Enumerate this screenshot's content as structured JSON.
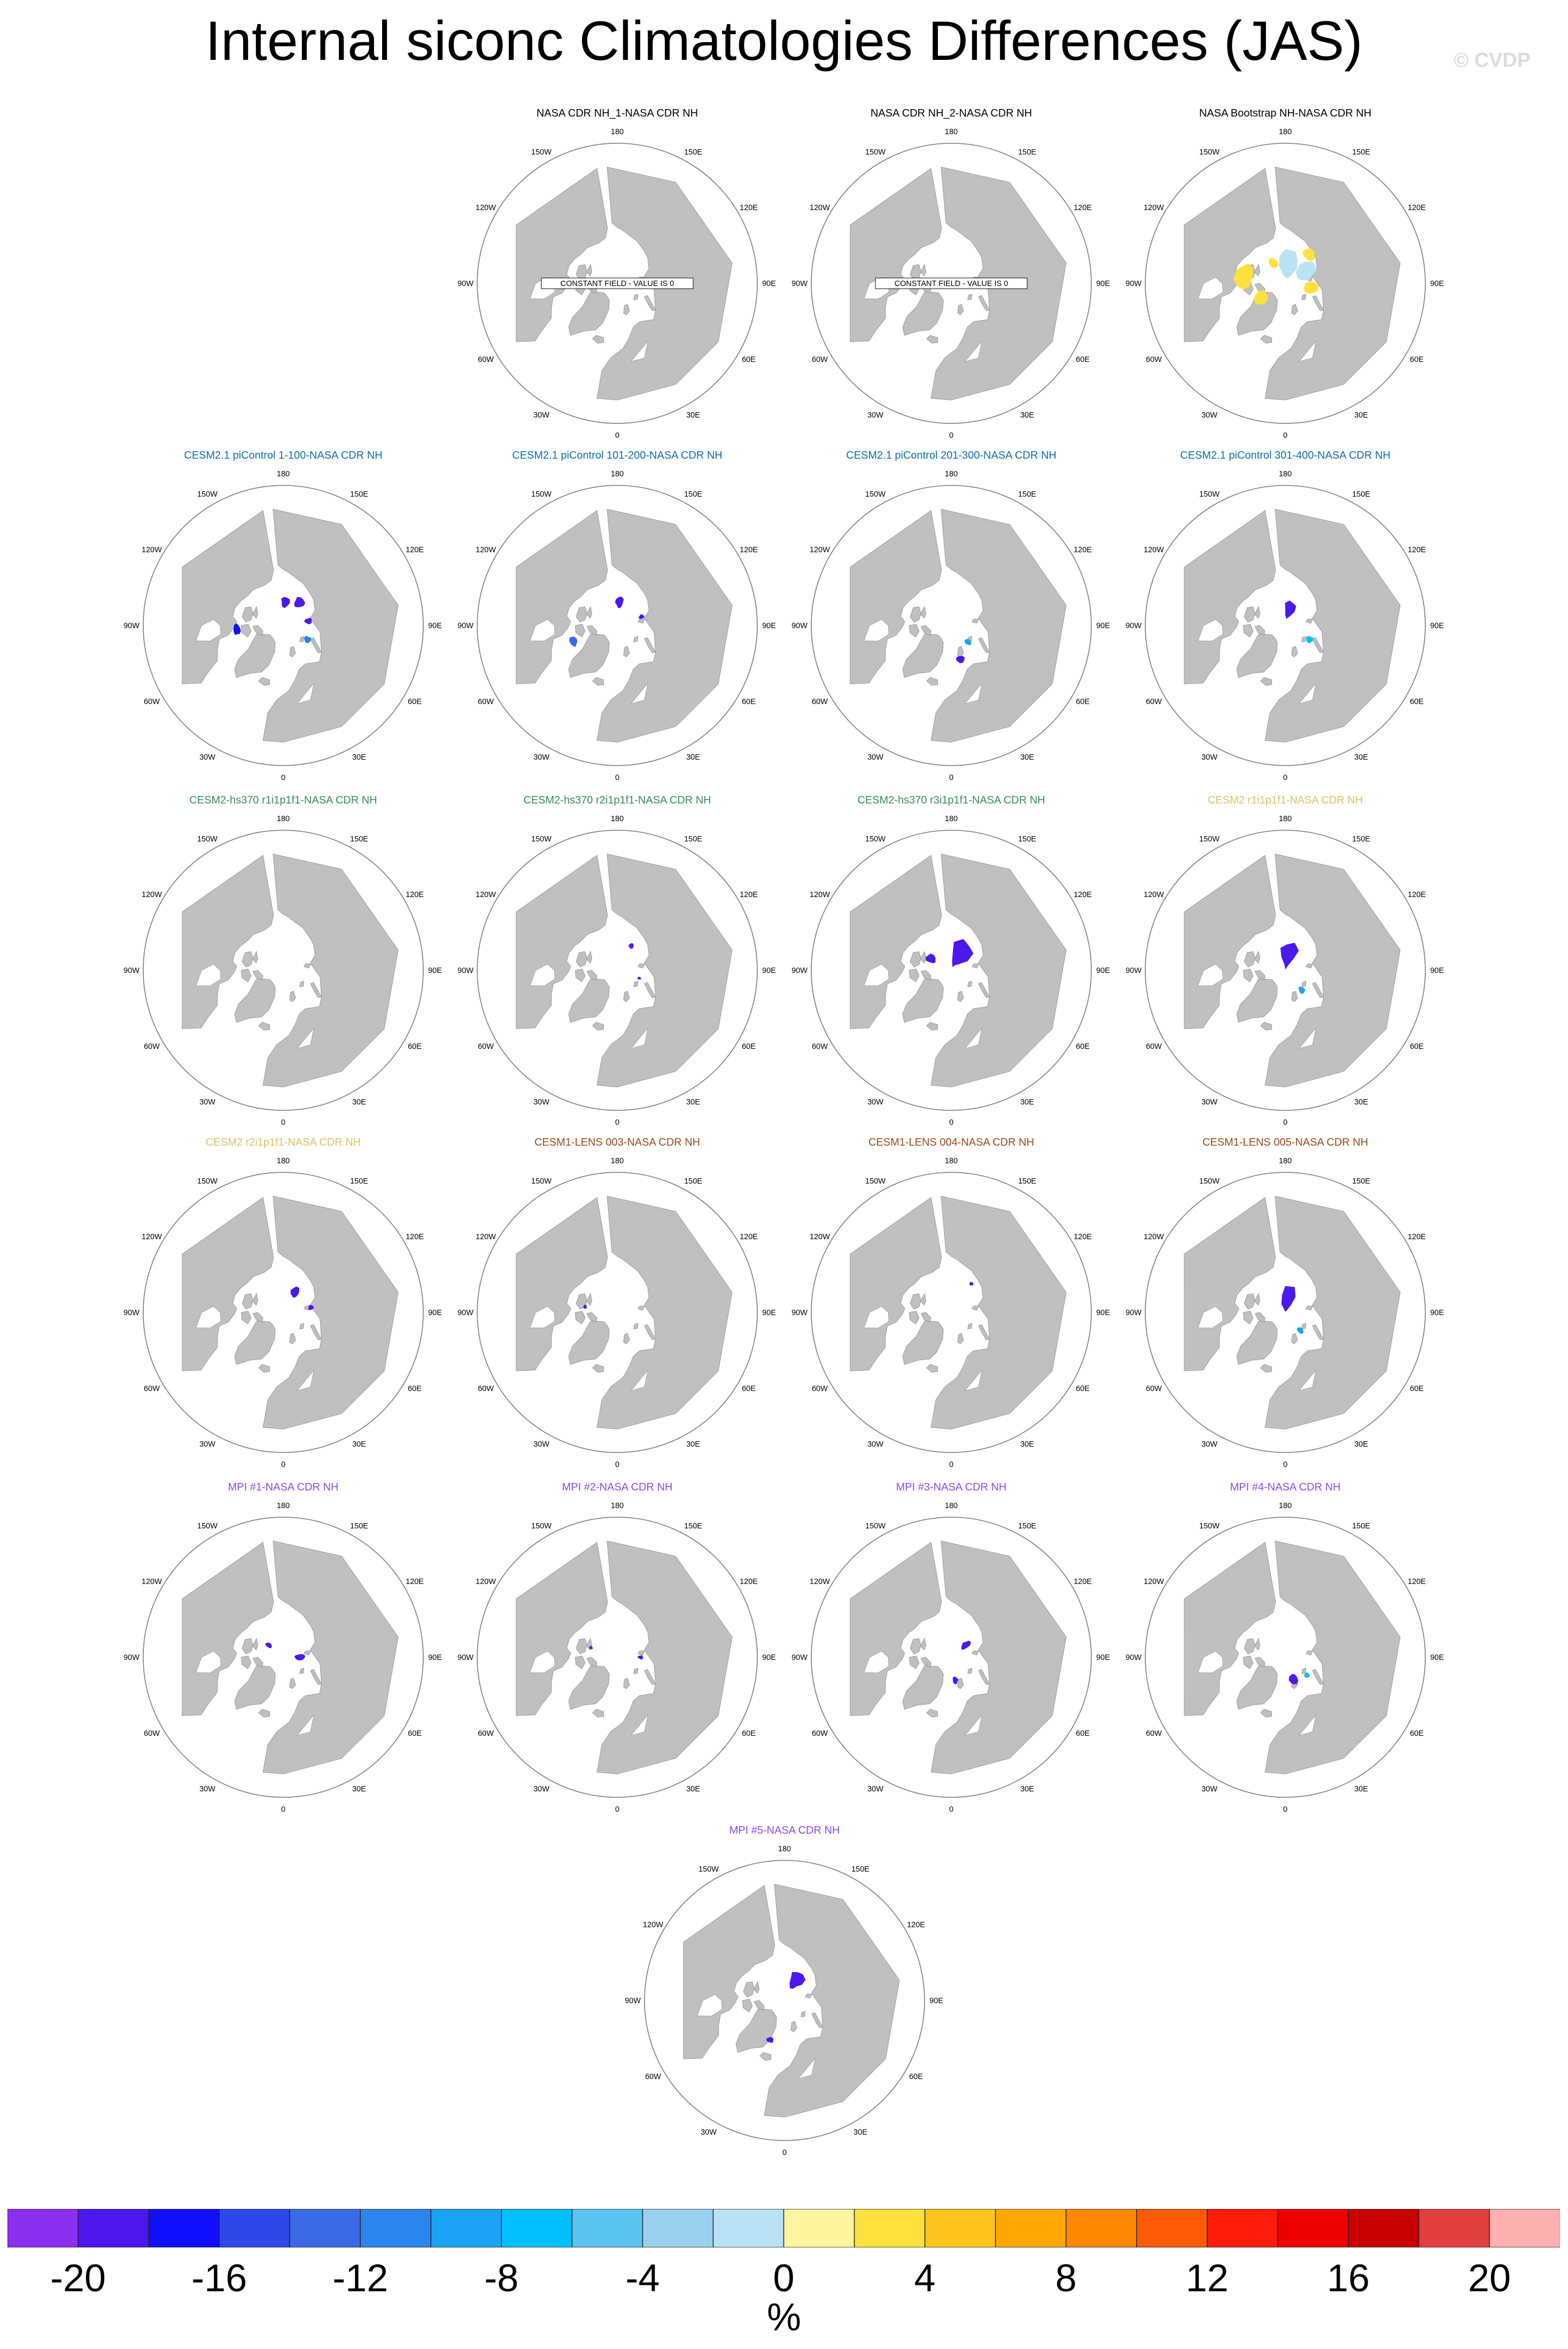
{
  "title": "Internal siconc Climatologies Differences (JAS)",
  "watermark": "© CVDP",
  "chart_data": {
    "type": "heatmap",
    "projection": "north-polar-stereographic",
    "grid": true,
    "colors": {
      "land": "#c0c0c0",
      "ocean": "#ffffff",
      "label_black": "#000000",
      "label_cesm21": "#0f6ea8",
      "label_hs370": "#3b8a5a",
      "label_cesm2": "#d6c46a",
      "label_lens": "#9a4a1a",
      "label_mpi": "#8a4be6"
    },
    "longitude_labels": [
      "180",
      "150E",
      "120E",
      "90E",
      "60E",
      "30E",
      "0",
      "30W",
      "60W",
      "90W",
      "120W",
      "150W"
    ],
    "panels": [
      {
        "title": "NASA CDR NH_1-NASA CDR NH",
        "title_color": "label_black",
        "note": "CONSTANT FIELD - VALUE IS 0",
        "anomalies": []
      },
      {
        "title": "NASA CDR NH_2-NASA CDR NH",
        "title_color": "label_black",
        "note": "CONSTANT FIELD - VALUE IS 0",
        "anomalies": []
      },
      {
        "title": "NASA Bootstrap NH-NASA CDR NH",
        "title_color": "label_black",
        "note": "",
        "anomalies": [
          {
            "value": -2,
            "lon": 170,
            "lat": 82,
            "extent": 8
          },
          {
            "value": -2,
            "lon": 120,
            "lat": 80,
            "extent": 6
          },
          {
            "value": 2,
            "lon": -100,
            "lat": 72,
            "extent": 5
          },
          {
            "value": 2,
            "lon": -60,
            "lat": 78,
            "extent": 4
          },
          {
            "value": 2,
            "lon": 80,
            "lat": 79,
            "extent": 4
          },
          {
            "value": 2,
            "lon": 140,
            "lat": 74,
            "extent": 3
          },
          {
            "value": 2,
            "lon": -150,
            "lat": 80,
            "extent": 3
          }
        ]
      },
      {
        "title": "CESM2.1 piControl 1-100-NASA CDR NH",
        "title_color": "label_cesm21",
        "note": "",
        "anomalies": [
          {
            "value": -20,
            "lon": 145,
            "lat": 78,
            "extent": 3
          },
          {
            "value": -20,
            "lon": 175,
            "lat": 80,
            "extent": 3
          },
          {
            "value": -20,
            "lon": 100,
            "lat": 79,
            "extent": 2
          },
          {
            "value": -12,
            "lon": 60,
            "lat": 78,
            "extent": 2
          },
          {
            "value": -18,
            "lon": -85,
            "lat": 70,
            "extent": 2
          }
        ]
      },
      {
        "title": "CESM2.1 piControl 101-200-NASA CDR NH",
        "title_color": "label_cesm21",
        "note": "",
        "anomalies": [
          {
            "value": -20,
            "lon": 175,
            "lat": 80,
            "extent": 3
          },
          {
            "value": -14,
            "lon": -70,
            "lat": 70,
            "extent": 2
          },
          {
            "value": -20,
            "lon": 110,
            "lat": 79,
            "extent": 1.5
          }
        ]
      },
      {
        "title": "CESM2.1 piControl 201-300-NASA CDR NH",
        "title_color": "label_cesm21",
        "note": "",
        "anomalies": [
          {
            "value": -10,
            "lon": 45,
            "lat": 80,
            "extent": 2
          },
          {
            "value": -20,
            "lon": 15,
            "lat": 75,
            "extent": 2
          }
        ]
      },
      {
        "title": "CESM2.1 piControl 301-400-NASA CDR NH",
        "title_color": "label_cesm21",
        "note": "",
        "anomalies": [
          {
            "value": -20,
            "lon": 165,
            "lat": 83,
            "extent": 5
          },
          {
            "value": -8,
            "lon": 60,
            "lat": 78,
            "extent": 2
          }
        ]
      },
      {
        "title": "CESM2-hs370 r1i1p1f1-NASA CDR NH",
        "title_color": "label_hs370",
        "note": "",
        "anomalies": []
      },
      {
        "title": "CESM2-hs370 r2i1p1f1-NASA CDR NH",
        "title_color": "label_hs370",
        "note": "",
        "anomalies": [
          {
            "value": -20,
            "lon": 150,
            "lat": 78,
            "extent": 1.5
          },
          {
            "value": -20,
            "lon": 70,
            "lat": 80,
            "extent": 1
          }
        ]
      },
      {
        "title": "CESM2-hs370 r3i1p1f1-NASA CDR NH",
        "title_color": "label_hs370",
        "note": "",
        "anomalies": [
          {
            "value": -20,
            "lon": 150,
            "lat": 82,
            "extent": 8
          },
          {
            "value": -20,
            "lon": -120,
            "lat": 80,
            "extent": 3
          }
        ]
      },
      {
        "title": "CESM2 r1i1p1f1-NASA CDR NH",
        "title_color": "label_cesm2",
        "note": "",
        "anomalies": [
          {
            "value": -20,
            "lon": 170,
            "lat": 84,
            "extent": 8
          },
          {
            "value": -10,
            "lon": 40,
            "lat": 79,
            "extent": 2
          }
        ]
      },
      {
        "title": "CESM2 r2i1p1f1-NASA CDR NH",
        "title_color": "label_cesm2",
        "note": "",
        "anomalies": [
          {
            "value": -20,
            "lon": 150,
            "lat": 80,
            "extent": 3
          },
          {
            "value": -20,
            "lon": 100,
            "lat": 78,
            "extent": 1.5
          }
        ]
      },
      {
        "title": "CESM1-LENS 003-NASA CDR NH",
        "title_color": "label_lens",
        "note": "",
        "anomalies": [
          {
            "value": -20,
            "lon": -100,
            "lat": 76,
            "extent": 1
          }
        ]
      },
      {
        "title": "CESM1-LENS 004-NASA CDR NH",
        "title_color": "label_lens",
        "note": "",
        "anomalies": [
          {
            "value": -20,
            "lon": 145,
            "lat": 75,
            "extent": 1
          }
        ]
      },
      {
        "title": "CESM1-LENS 005-NASA CDR NH",
        "title_color": "label_lens",
        "note": "",
        "anomalies": [
          {
            "value": -20,
            "lon": 170,
            "lat": 86,
            "extent": 9
          },
          {
            "value": -10,
            "lon": 40,
            "lat": 80,
            "extent": 2
          }
        ]
      },
      {
        "title": "MPI #1-NASA CDR NH",
        "title_color": "label_mpi",
        "note": "",
        "anomalies": [
          {
            "value": -20,
            "lon": 90,
            "lat": 83,
            "extent": 3
          },
          {
            "value": -20,
            "lon": -130,
            "lat": 82,
            "extent": 2
          }
        ]
      },
      {
        "title": "MPI #2-NASA CDR NH",
        "title_color": "label_mpi",
        "note": "",
        "anomalies": [
          {
            "value": -20,
            "lon": 90,
            "lat": 80,
            "extent": 1.5
          },
          {
            "value": -20,
            "lon": -110,
            "lat": 78,
            "extent": 1
          }
        ]
      },
      {
        "title": "MPI #3-NASA CDR NH",
        "title_color": "label_mpi",
        "note": "",
        "anomalies": [
          {
            "value": -20,
            "lon": 130,
            "lat": 82,
            "extent": 3
          },
          {
            "value": -20,
            "lon": 10,
            "lat": 80,
            "extent": 2
          }
        ]
      },
      {
        "title": "MPI #4-NASA CDR NH",
        "title_color": "label_mpi",
        "note": "",
        "anomalies": [
          {
            "value": -20,
            "lon": 20,
            "lat": 80,
            "extent": 3
          },
          {
            "value": -8,
            "lon": 50,
            "lat": 78,
            "extent": 1.5
          }
        ]
      },
      {
        "title": "MPI #5-NASA CDR NH",
        "title_color": "label_mpi",
        "note": "",
        "anomalies": [
          {
            "value": -20,
            "lon": 150,
            "lat": 80,
            "extent": 5
          },
          {
            "value": -20,
            "lon": -20,
            "lat": 72,
            "extent": 1.5
          }
        ]
      }
    ],
    "colorbar": {
      "colors": [
        "#8b2ff0",
        "#4b18ee",
        "#1010ff",
        "#2f48e8",
        "#3a6be6",
        "#2b84f0",
        "#1aa3f5",
        "#00bfff",
        "#59c4ef",
        "#99d0ee",
        "#b9e3f5",
        "#fff5a0",
        "#ffe13d",
        "#ffc41b",
        "#ffa700",
        "#ff8800",
        "#ff5a05",
        "#ff1c0a",
        "#ee0000",
        "#c80000",
        "#e04040",
        "#ffb0b0"
      ],
      "tick_values": [
        -20,
        -16,
        -12,
        -8,
        -4,
        0,
        4,
        8,
        12,
        16,
        20
      ],
      "tick_labels": [
        "-20",
        "-16",
        "-12",
        "-8",
        "-4",
        "0",
        "4",
        "8",
        "12",
        "16",
        "20"
      ],
      "unit": "%"
    }
  }
}
